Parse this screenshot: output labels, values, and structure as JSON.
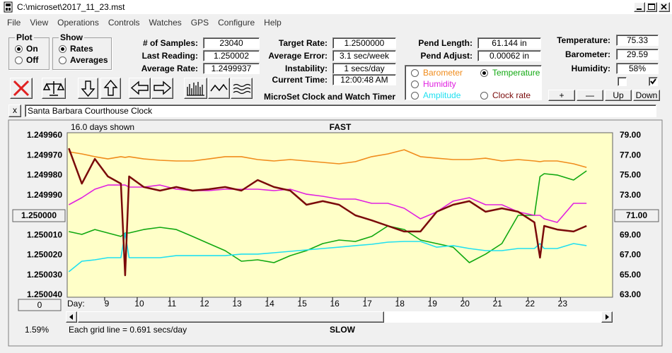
{
  "window": {
    "title": "C:\\microset\\2017_11_23.mst"
  },
  "menu": [
    "File",
    "View",
    "Operations",
    "Controls",
    "Watches",
    "GPS",
    "Configure",
    "Help"
  ],
  "plot_group": {
    "title": "Plot",
    "options": [
      "On",
      "Off"
    ],
    "selected": 0
  },
  "show_group": {
    "title": "Show",
    "options": [
      "Rates",
      "Averages"
    ],
    "selected": 0
  },
  "fields": [
    [
      {
        "label": "# of Samples:",
        "value": "23040"
      },
      {
        "label": "Last Reading:",
        "value": "1.250002"
      },
      {
        "label": "Average Rate:",
        "value": "1.2499937"
      }
    ],
    [
      {
        "label": "Target Rate:",
        "value": "1.2500000"
      },
      {
        "label": "Average Error:",
        "value": "3.1 sec/week"
      },
      {
        "label": "Instability:",
        "value": "1 secs/day"
      },
      {
        "label": "Current Time:",
        "value": "12:00:48 AM"
      }
    ],
    [
      {
        "label": "Pend Length:",
        "value": "61.144 in"
      },
      {
        "label": "Pend Adjust:",
        "value": "0.00062 in"
      }
    ],
    [
      {
        "label": "Temperature:",
        "value": "75.33"
      },
      {
        "label": "Barometer:",
        "value": "29.59"
      },
      {
        "label": "Humidity:",
        "value": "58%"
      }
    ]
  ],
  "app_title": "MicroSet Clock and Watch Timer",
  "buttons": [
    "+",
    "—",
    "Up",
    "Down"
  ],
  "checkboxes": [
    false,
    true
  ],
  "clear_button": "x",
  "clock_name": "Santa Barbara Courthouse Clock",
  "chart_data": {
    "type": "line",
    "days_shown": "16.0 days shown",
    "top_label": "FAST",
    "bottom_label": "SLOW",
    "note": "Each grid line = 0.691 secs/day",
    "status": "1.59%",
    "x_label": "Day:",
    "scroll_button": "0",
    "xlim": [
      7.85,
      24.6
    ],
    "xticks": [
      9,
      10,
      11,
      12,
      13,
      14,
      15,
      16,
      17,
      18,
      19,
      20,
      21,
      22,
      23
    ],
    "ylim": [
      1.24996,
      1.25004
    ],
    "y_inverted": true,
    "yticks": [
      {
        "value": 1.24996,
        "label": "1.249960"
      },
      {
        "value": 1.24997,
        "label": "1.249970"
      },
      {
        "value": 1.24998,
        "label": "1.249980"
      },
      {
        "value": 1.24999,
        "label": "1.249990"
      },
      {
        "value": 1.25,
        "label": "1.250000"
      },
      {
        "value": 1.25001,
        "label": "1.250010"
      },
      {
        "value": 1.25002,
        "label": "1.250020"
      },
      {
        "value": 1.25003,
        "label": "1.250030"
      },
      {
        "value": 1.25004,
        "label": "1.250040"
      }
    ],
    "y2lim": [
      63,
      79
    ],
    "y2ticks": [
      {
        "value": 79,
        "label": "79.00"
      },
      {
        "value": 77,
        "label": "77.00"
      },
      {
        "value": 75,
        "label": "75.00"
      },
      {
        "value": 73,
        "label": "73.00"
      },
      {
        "value": 71,
        "label": "71.00"
      },
      {
        "value": 69,
        "label": "69.00"
      },
      {
        "value": 67,
        "label": "67.00"
      },
      {
        "value": 65,
        "label": "65.00"
      },
      {
        "value": 63,
        "label": "63.00"
      }
    ],
    "grid": false,
    "selected_series": 1,
    "x": [
      7.9,
      8.3,
      8.7,
      9.1,
      9.5,
      9.63,
      9.75,
      10.2,
      10.7,
      11.2,
      11.7,
      12.2,
      12.7,
      13.2,
      13.7,
      14.2,
      14.7,
      15.2,
      15.7,
      16.2,
      16.7,
      17.2,
      17.7,
      18.2,
      18.7,
      19.2,
      19.7,
      20.2,
      20.7,
      21.2,
      21.7,
      22.2,
      22.37,
      22.5,
      22.9,
      23.4,
      23.8
    ],
    "series": [
      {
        "name": "Barometer",
        "color": "#f08c1c",
        "axis": "y2",
        "values": [
          77.37,
          77.16,
          76.88,
          76.66,
          76.88,
          76.81,
          76.88,
          76.66,
          76.52,
          76.45,
          76.45,
          76.66,
          76.88,
          76.88,
          76.59,
          76.45,
          76.59,
          76.45,
          76.31,
          76.17,
          76.38,
          76.88,
          77.16,
          77.58,
          76.88,
          76.73,
          76.59,
          76.59,
          76.73,
          76.45,
          76.59,
          76.45,
          76.38,
          76.45,
          76.45,
          76.17,
          75.81
        ]
      },
      {
        "name": "Temperature",
        "color": "#10a810",
        "axis": "y2",
        "values": [
          69.37,
          69.09,
          69.58,
          69.23,
          68.88,
          69.23,
          69.23,
          69.58,
          69.8,
          69.58,
          68.88,
          68.17,
          67.46,
          66.4,
          66.54,
          66.26,
          66.96,
          67.46,
          68.17,
          68.52,
          68.38,
          68.88,
          69.94,
          69.58,
          68.52,
          68.17,
          67.81,
          66.26,
          67.11,
          68.17,
          71.0,
          71.0,
          74.89,
          75.18,
          75.04,
          74.54,
          75.46
        ]
      },
      {
        "name": "Humidity",
        "color": "#e020e0",
        "axis": "y2",
        "values": [
          72.06,
          72.77,
          73.62,
          74.04,
          74.04,
          74.04,
          73.83,
          73.83,
          74.04,
          73.62,
          73.48,
          73.48,
          73.62,
          73.62,
          73.62,
          73.48,
          73.62,
          73.12,
          72.91,
          72.63,
          72.63,
          72.2,
          72.2,
          71.71,
          70.65,
          71.35,
          72.42,
          72.77,
          72.06,
          72.06,
          71.35,
          71.0,
          71.0,
          70.65,
          70.29,
          72.2,
          72.2
        ]
      },
      {
        "name": "Amplitude",
        "color": "#20e0f0",
        "axis": "y2",
        "values": [
          65.34,
          66.4,
          66.54,
          66.75,
          66.75,
          69.23,
          66.75,
          66.75,
          66.75,
          66.96,
          66.96,
          66.96,
          66.96,
          67.11,
          67.11,
          67.25,
          67.39,
          67.53,
          67.67,
          67.81,
          67.96,
          68.1,
          68.31,
          68.38,
          68.38,
          67.81,
          67.96,
          67.67,
          67.46,
          67.46,
          67.67,
          67.67,
          68.17,
          67.67,
          67.67,
          68.17,
          67.96
        ]
      },
      {
        "name": "Clock rate",
        "color": "#7a0a0a",
        "axis": "y",
        "values": [
          1.2499664,
          1.2499841,
          1.2499717,
          1.2499805,
          1.2499841,
          1.2500301,
          1.2499805,
          1.2499858,
          1.2499876,
          1.2499858,
          1.2499876,
          1.2499869,
          1.2499858,
          1.2499876,
          1.2499823,
          1.2499858,
          1.2499876,
          1.2499947,
          1.2499929,
          1.2499947,
          1.25,
          1.2500025,
          1.2500053,
          1.2500081,
          1.2500081,
          1.2499982,
          1.2499947,
          1.2499929,
          1.2499982,
          1.2499965,
          1.2499982,
          1.2500035,
          1.2500212,
          1.2500053,
          1.2500071,
          1.2500081,
          1.2500053
        ]
      }
    ]
  }
}
